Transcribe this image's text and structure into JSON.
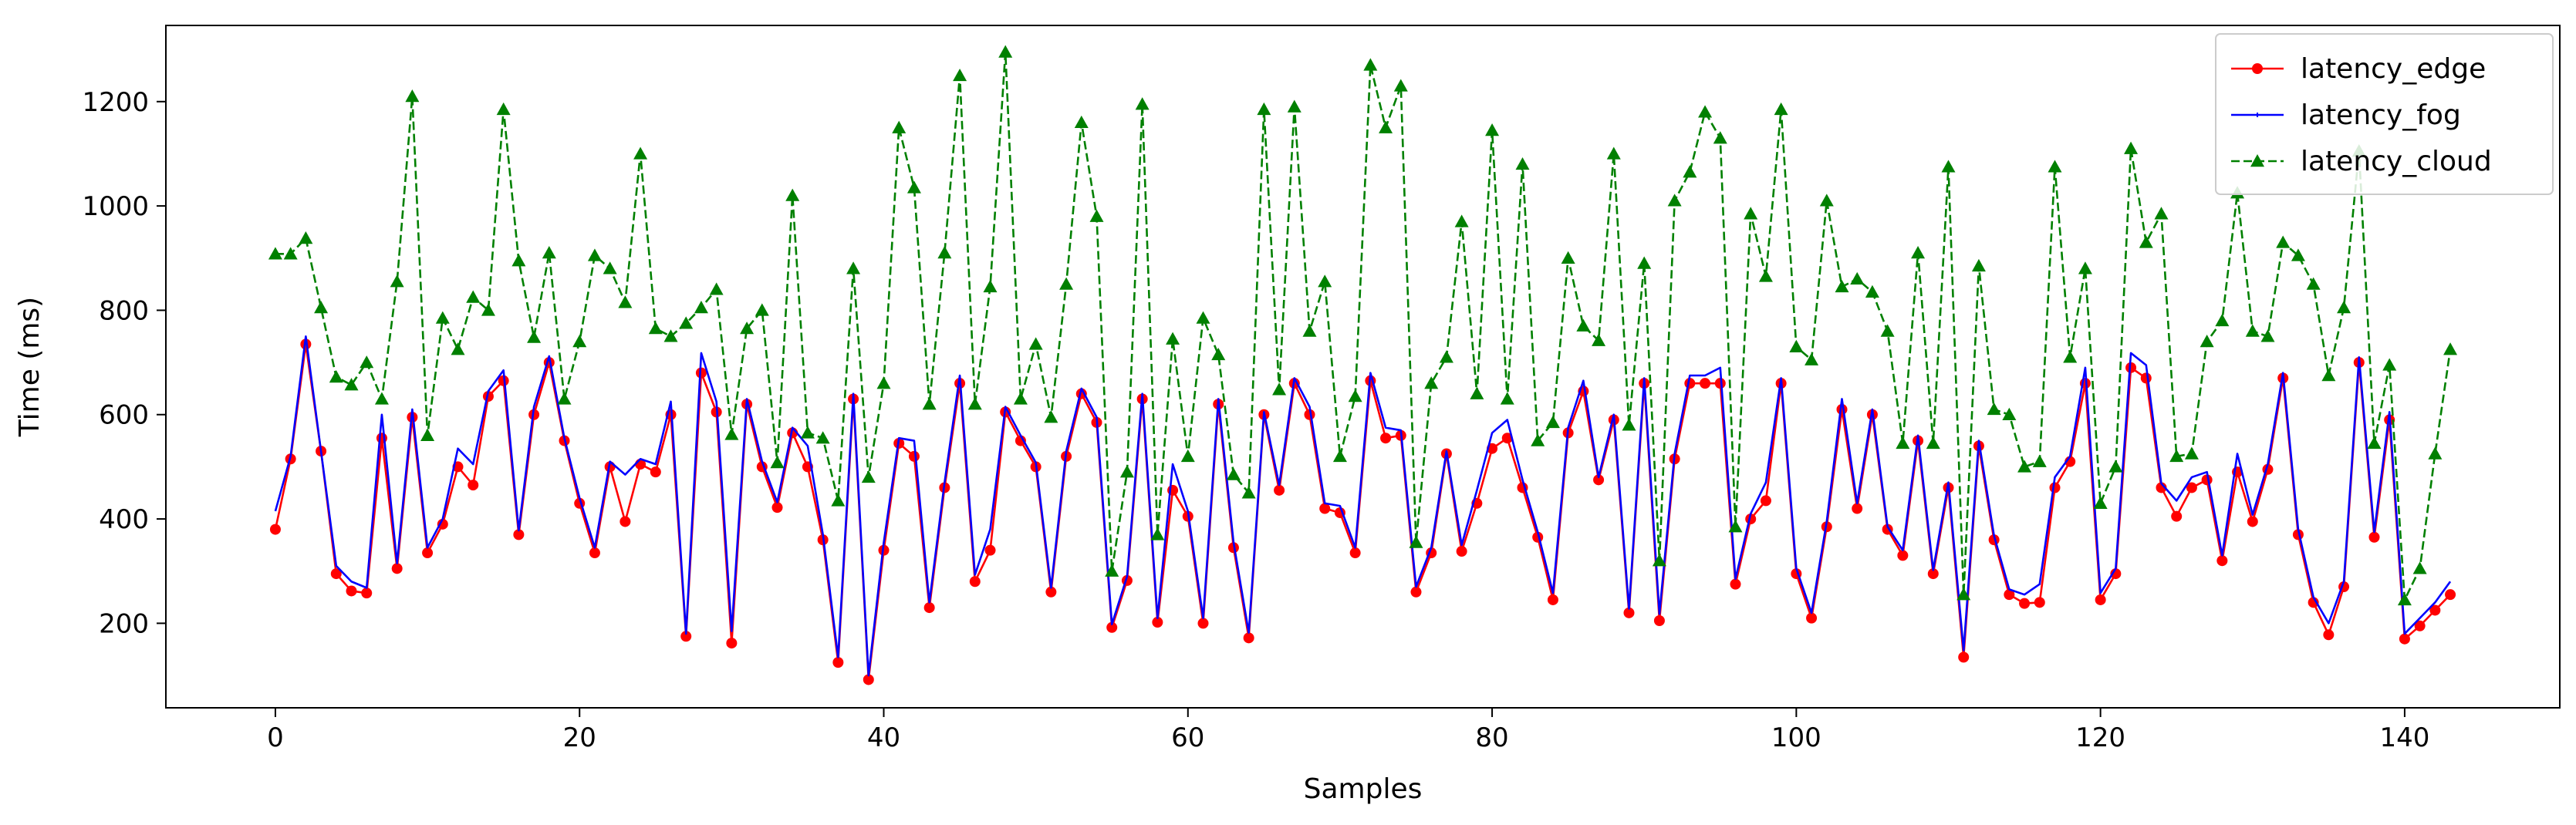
{
  "chart_data": {
    "type": "line",
    "title": "",
    "xlabel": "Samples",
    "ylabel": "Time (ms)",
    "xlim": [
      -7.2,
      150.2
    ],
    "ylim": [
      38,
      1346
    ],
    "xticks": [
      0,
      20,
      40,
      60,
      80,
      100,
      120,
      140
    ],
    "yticks": [
      200,
      400,
      600,
      800,
      1000,
      1200
    ],
    "grid": false,
    "legend_position": "top-right",
    "x": [
      0,
      1,
      2,
      3,
      4,
      5,
      6,
      7,
      8,
      9,
      10,
      11,
      12,
      13,
      14,
      15,
      16,
      17,
      18,
      19,
      20,
      21,
      22,
      23,
      24,
      25,
      26,
      27,
      28,
      29,
      30,
      31,
      32,
      33,
      34,
      35,
      36,
      37,
      38,
      39,
      40,
      41,
      42,
      43,
      44,
      45,
      46,
      47,
      48,
      49,
      50,
      51,
      52,
      53,
      54,
      55,
      56,
      57,
      58,
      59,
      60,
      61,
      62,
      63,
      64,
      65,
      66,
      67,
      68,
      69,
      70,
      71,
      72,
      73,
      74,
      75,
      76,
      77,
      78,
      79,
      80,
      81,
      82,
      83,
      84,
      85,
      86,
      87,
      88,
      89,
      90,
      91,
      92,
      93,
      94,
      95,
      96,
      97,
      98,
      99,
      100,
      101,
      102,
      103,
      104,
      105,
      106,
      107,
      108,
      109,
      110,
      111,
      112,
      113,
      114,
      115,
      116,
      117,
      118,
      119,
      120,
      121,
      122,
      123,
      124,
      125,
      126,
      127,
      128,
      129,
      130,
      131,
      132,
      133,
      134,
      135,
      136,
      137,
      138,
      139,
      140,
      141,
      142,
      143
    ],
    "series": [
      {
        "name": "latency_edge",
        "color": "#ff0000",
        "marker": "circle",
        "linestyle": "solid",
        "values": [
          380,
          515,
          735,
          530,
          295,
          262,
          258,
          555,
          305,
          595,
          335,
          390,
          500,
          465,
          635,
          665,
          370,
          600,
          700,
          550,
          430,
          335,
          500,
          395,
          505,
          490,
          600,
          175,
          680,
          605,
          162,
          620,
          500,
          422,
          565,
          500,
          360,
          125,
          630,
          92,
          340,
          545,
          520,
          230,
          460,
          660,
          280,
          340,
          605,
          550,
          500,
          260,
          520,
          640,
          585,
          192,
          282,
          630,
          202,
          455,
          405,
          200,
          620,
          345,
          172,
          600,
          455,
          660,
          600,
          420,
          412,
          335,
          665,
          555,
          560,
          260,
          335,
          525,
          338,
          430,
          535,
          555,
          460,
          365,
          245,
          565,
          645,
          475,
          590,
          220,
          660,
          205,
          515,
          660,
          660,
          660,
          275,
          400,
          435,
          660,
          295,
          210,
          385,
          610,
          420,
          600,
          380,
          330,
          550,
          295,
          460,
          135,
          540,
          360,
          255,
          238,
          240,
          460,
          510,
          660,
          245,
          295,
          690,
          670,
          460,
          405,
          460,
          475,
          320,
          490,
          395,
          495,
          670,
          370,
          240,
          178,
          270,
          700,
          365,
          590,
          170,
          195,
          225,
          255
        ]
      },
      {
        "name": "latency_fog",
        "color": "#0000ff",
        "marker": "none",
        "linestyle": "solid",
        "values": [
          415,
          520,
          750,
          530,
          310,
          280,
          268,
          600,
          315,
          610,
          345,
          400,
          535,
          505,
          645,
          685,
          378,
          615,
          712,
          555,
          440,
          345,
          510,
          485,
          515,
          505,
          625,
          180,
          718,
          625,
          185,
          630,
          510,
          432,
          575,
          540,
          370,
          135,
          640,
          100,
          355,
          555,
          550,
          240,
          470,
          675,
          293,
          380,
          615,
          560,
          508,
          268,
          530,
          650,
          595,
          198,
          290,
          640,
          210,
          505,
          415,
          210,
          630,
          355,
          182,
          605,
          465,
          670,
          615,
          430,
          425,
          345,
          680,
          575,
          570,
          270,
          345,
          530,
          350,
          455,
          565,
          590,
          475,
          375,
          258,
          575,
          665,
          480,
          600,
          228,
          670,
          218,
          525,
          675,
          675,
          690,
          285,
          410,
          470,
          670,
          305,
          220,
          395,
          630,
          430,
          610,
          385,
          340,
          560,
          302,
          470,
          148,
          550,
          368,
          265,
          255,
          275,
          480,
          520,
          690,
          258,
          305,
          718,
          695,
          468,
          435,
          480,
          490,
          330,
          525,
          408,
          505,
          680,
          380,
          250,
          200,
          280,
          710,
          375,
          605,
          180,
          210,
          240,
          280
        ]
      },
      {
        "name": "latency_cloud",
        "color": "#008000",
        "marker": "triangle",
        "linestyle": "dashed",
        "values": [
          908,
          908,
          938,
          805,
          672,
          657,
          700,
          630,
          855,
          1210,
          560,
          785,
          725,
          825,
          800,
          1185,
          895,
          748,
          910,
          630,
          740,
          905,
          880,
          815,
          1100,
          765,
          750,
          775,
          805,
          840,
          562,
          765,
          800,
          508,
          1020,
          565,
          555,
          435,
          880,
          480,
          660,
          1150,
          1035,
          620,
          910,
          1250,
          620,
          845,
          1295,
          630,
          735,
          595,
          850,
          1160,
          980,
          300,
          490,
          1195,
          370,
          745,
          520,
          785,
          715,
          485,
          450,
          1185,
          648,
          1190,
          760,
          855,
          520,
          635,
          1270,
          1150,
          1230,
          355,
          660,
          710,
          970,
          640,
          1145,
          630,
          1080,
          550,
          585,
          900,
          770,
          742,
          1100,
          580,
          890,
          320,
          1010,
          1065,
          1180,
          1130,
          385,
          985,
          865,
          1185,
          730,
          705,
          1010,
          845,
          860,
          835,
          760,
          545,
          910,
          545,
          1075,
          255,
          885,
          610,
          600,
          500,
          510,
          1075,
          710,
          880,
          430,
          500,
          1110,
          930,
          985,
          520,
          525,
          740,
          780,
          1025,
          760,
          750,
          930,
          905,
          850,
          675,
          805,
          1105,
          545,
          695,
          245,
          305,
          525,
          725
        ]
      }
    ]
  }
}
